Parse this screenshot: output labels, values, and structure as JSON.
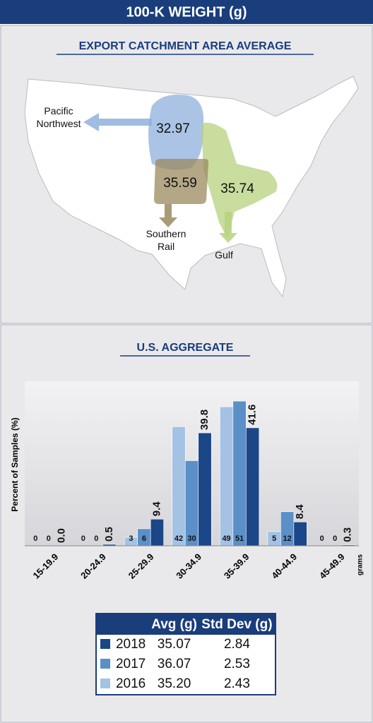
{
  "header": {
    "title": "100-K WEIGHT (g)"
  },
  "map": {
    "title": "EXPORT CATCHMENT AREA AVERAGE",
    "regions": [
      {
        "name": "Pacific Northwest",
        "value": 32.97,
        "color": "#8fb0dc"
      },
      {
        "name": "Southern Rail",
        "value": 35.59,
        "color": "#9a8a5e"
      },
      {
        "name": "Gulf",
        "value": 35.74,
        "color": "#b6d27e"
      }
    ]
  },
  "chart_data": {
    "type": "bar",
    "title": "U.S. AGGREGATE",
    "y_label": "Percent of Samples (%)",
    "x_label": "grams",
    "categories": [
      "15-19.9",
      "20-24.9",
      "25-29.9",
      "30-34.9",
      "35-39.9",
      "40-44.9",
      "45-49.9"
    ],
    "series": [
      {
        "name": "2016",
        "color": "#a3c2e4",
        "values": [
          0,
          0,
          3,
          42,
          49,
          5,
          0
        ]
      },
      {
        "name": "2017",
        "color": "#5b8fc8",
        "values": [
          0,
          0,
          6,
          30,
          51,
          12,
          0
        ]
      },
      {
        "name": "2018",
        "color": "#1b4688",
        "values": [
          0.0,
          0.5,
          9.4,
          39.8,
          41.6,
          8.4,
          0.3
        ],
        "value_labels": [
          "0.0",
          "0.5",
          "9.4",
          "39.8",
          "41.6",
          "8.4",
          "0.3"
        ]
      }
    ],
    "ylim": [
      0,
      58
    ]
  },
  "table": {
    "headers": [
      "Avg (g)",
      "Std Dev (g)"
    ],
    "rows": [
      [
        "35.07",
        "2.84"
      ],
      [
        "36.07",
        "2.53"
      ],
      [
        "35.20",
        "2.43"
      ]
    ]
  }
}
